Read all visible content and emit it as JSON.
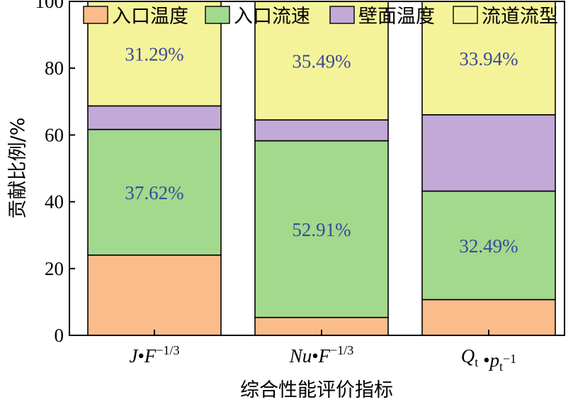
{
  "chart_data": {
    "type": "bar",
    "stacked": true,
    "xlabel": "综合性能评价指标",
    "ylabel": "贡献比例/%",
    "ylim": [
      0,
      100
    ],
    "yticks": [
      0,
      20,
      40,
      60,
      80,
      100
    ],
    "legend_position": "top",
    "categories": [
      {
        "base": "J",
        "sep": "•",
        "base2": "F",
        "sup": "−1/3"
      },
      {
        "base": "Nu",
        "sep": "•",
        "base2": "F",
        "sup": "−1/3"
      },
      {
        "base": "Q",
        "sub": "t",
        "sep": " •",
        "base2": "p",
        "sub2": "t",
        "sup": "−1"
      }
    ],
    "series": [
      {
        "name": "入口温度",
        "color": "#F9BC8A",
        "values": [
          24.04,
          5.36,
          10.71
        ]
      },
      {
        "name": "入口流速",
        "color": "#A3D98D",
        "values": [
          37.62,
          52.91,
          32.49
        ]
      },
      {
        "name": "壁面温度",
        "color": "#C3A9D8",
        "values": [
          7.05,
          6.24,
          22.86
        ]
      },
      {
        "name": "流道流型",
        "color": "#F5F39A",
        "values": [
          31.29,
          35.49,
          33.94
        ]
      }
    ],
    "data_labels": [
      {
        "category": 0,
        "series": 1,
        "text": "37.62%"
      },
      {
        "category": 0,
        "series": 3,
        "text": "31.29%"
      },
      {
        "category": 1,
        "series": 1,
        "text": "52.91%"
      },
      {
        "category": 1,
        "series": 3,
        "text": "35.49%"
      },
      {
        "category": 2,
        "series": 1,
        "text": "32.49%"
      },
      {
        "category": 2,
        "series": 3,
        "text": "33.94%"
      }
    ],
    "label_color": "#3A4A9A"
  }
}
